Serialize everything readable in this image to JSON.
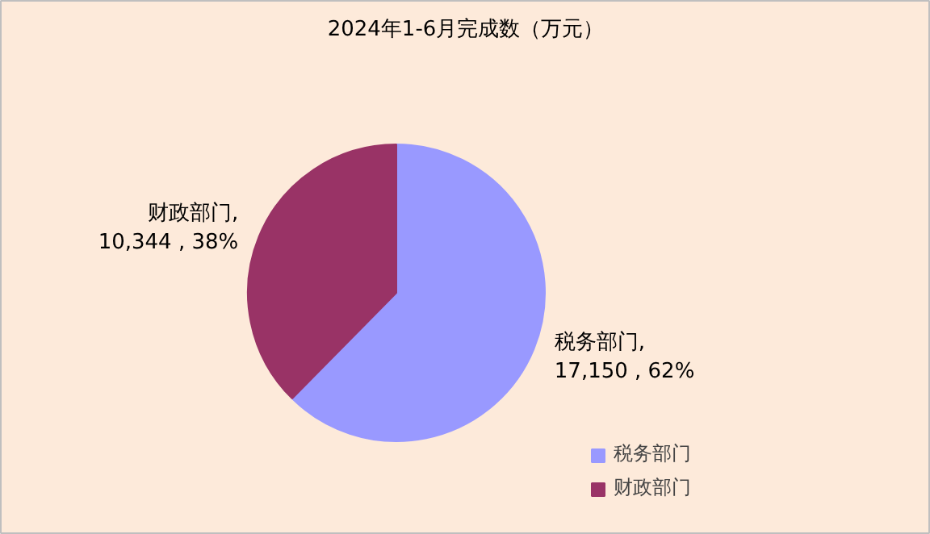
{
  "chart_data": {
    "type": "pie",
    "title": "2024年1-6月完成数（万元）",
    "categories": [
      "税务部门",
      "财政部门"
    ],
    "values": [
      17150,
      10344
    ],
    "colors": [
      "#9999ff",
      "#993366"
    ],
    "value_labels": [
      "税务部门,\n17,150 , 62%",
      "财政部门,\n10,344 , 38%"
    ],
    "legend": "bottom right"
  }
}
